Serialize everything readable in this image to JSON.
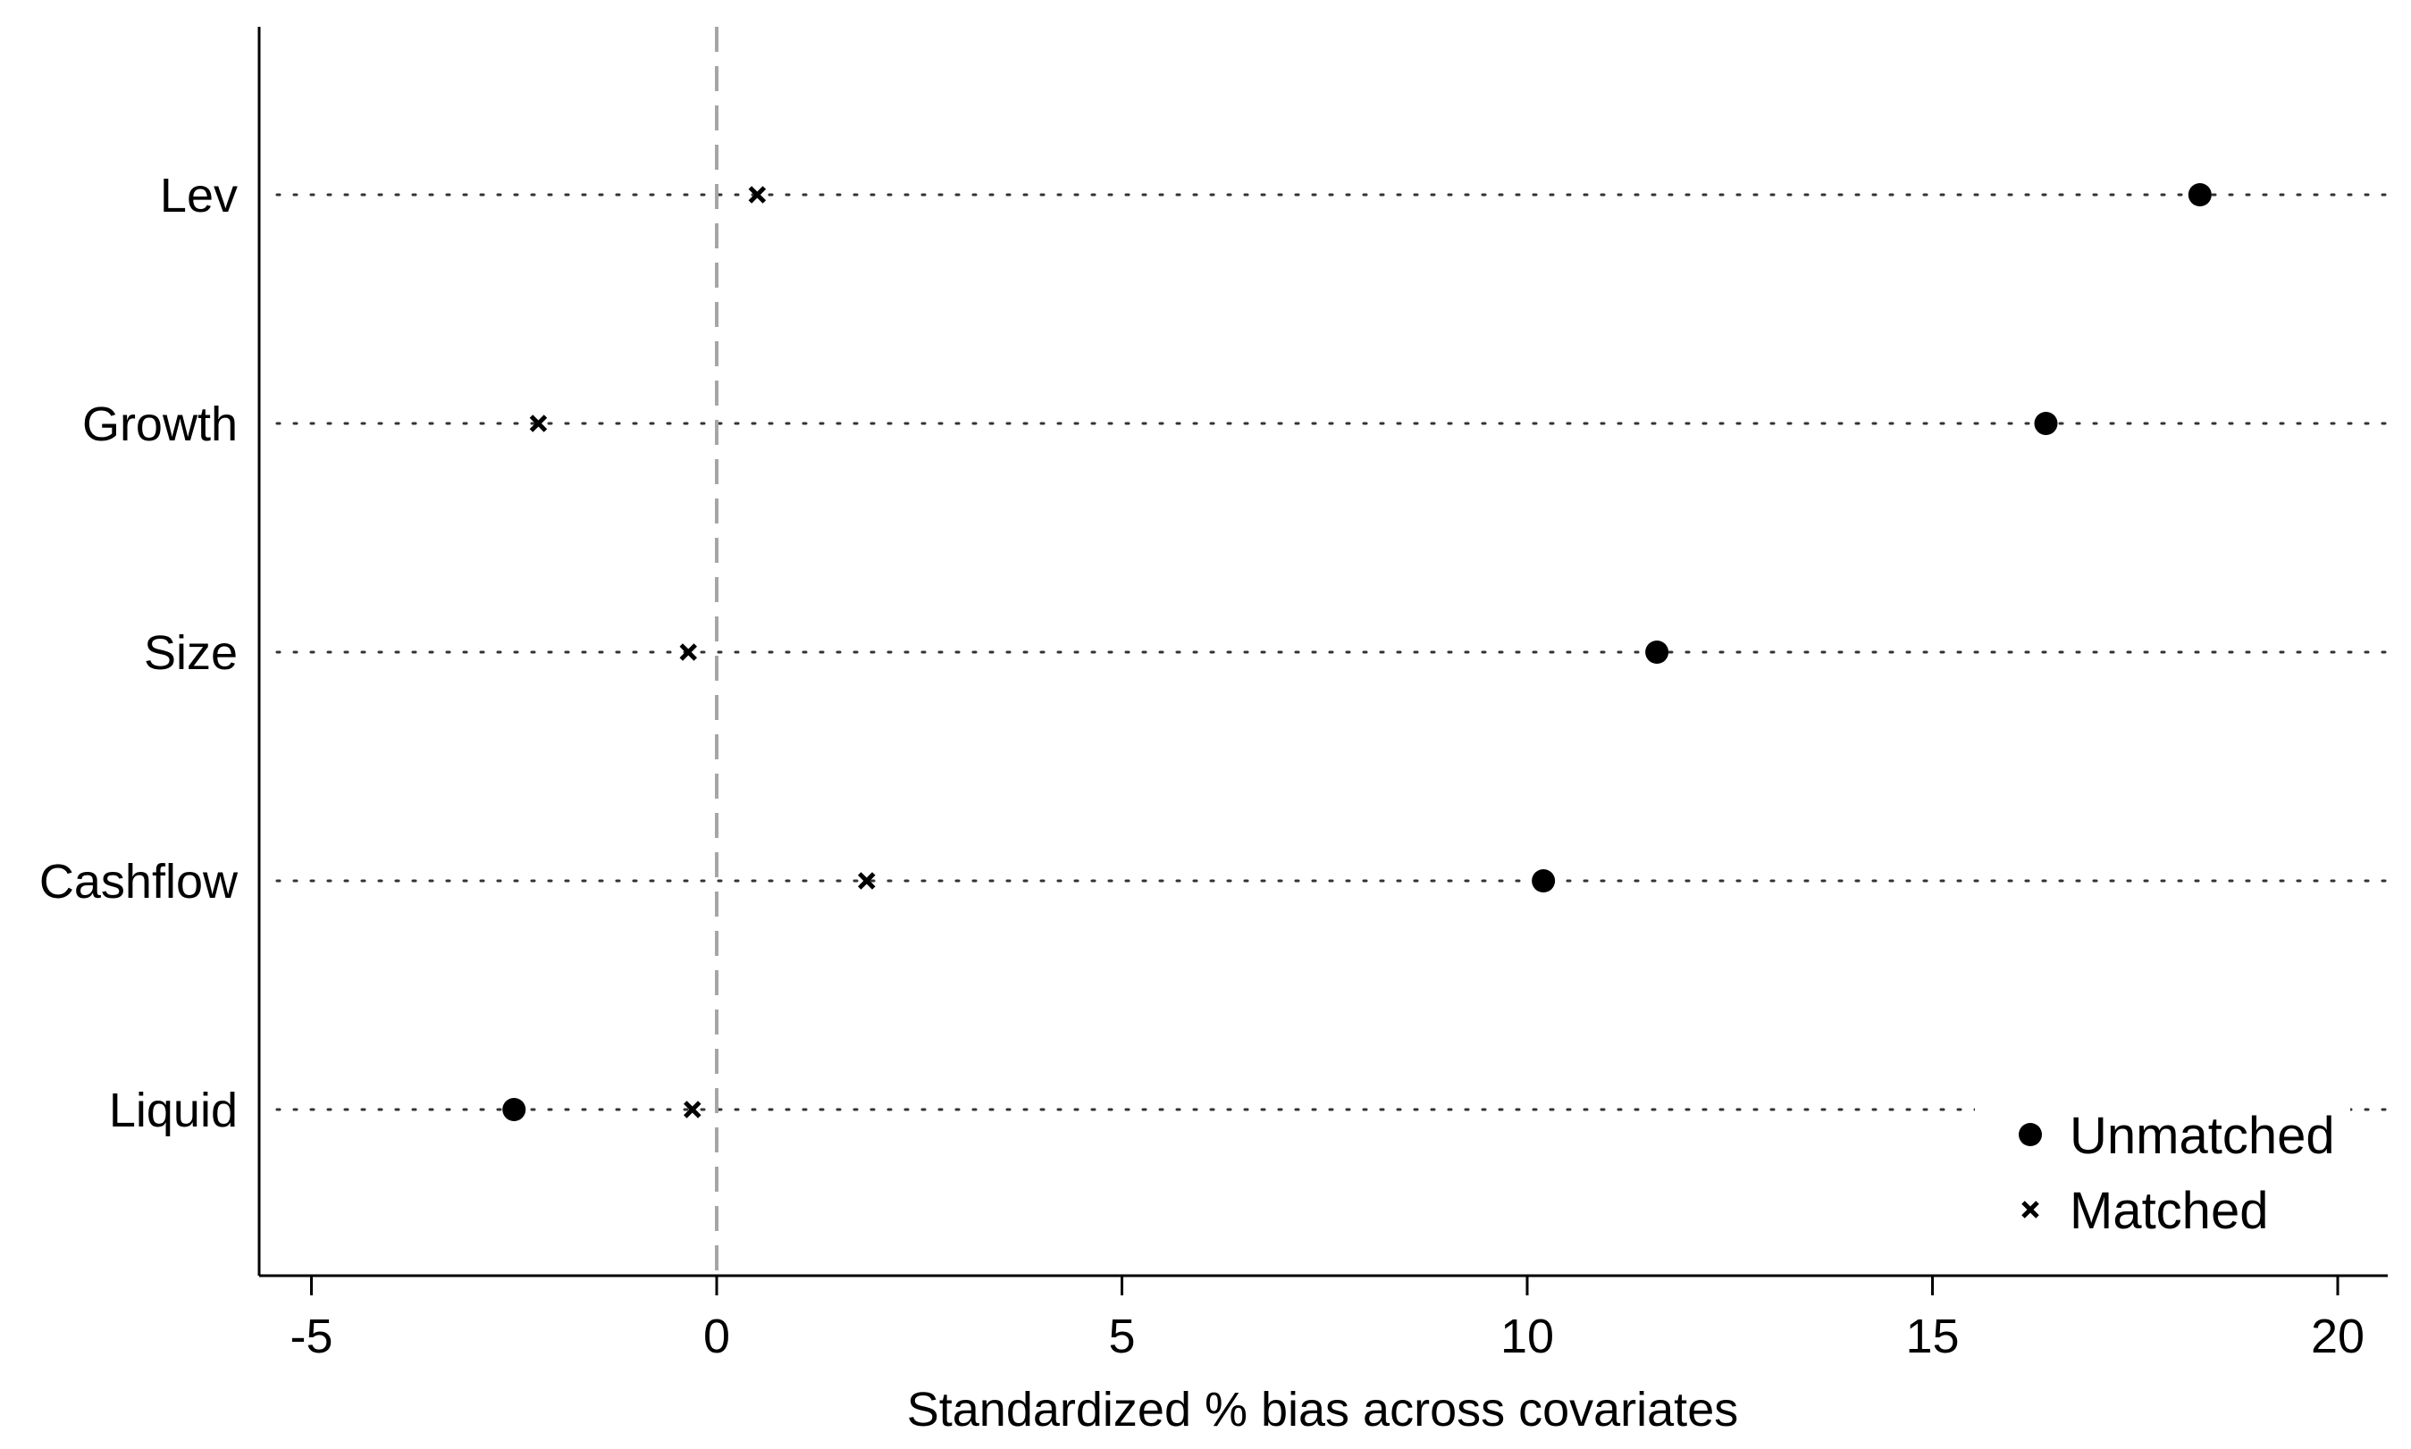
{
  "chart_data": {
    "type": "scatter",
    "xlabel": "Standardized % bias across covariates",
    "ylabel": "",
    "xlim": [
      -6.3,
      20.2
    ],
    "xticks": [
      -5,
      0,
      5,
      10,
      15,
      20
    ],
    "xtick_labels": [
      "-5",
      "0",
      "5",
      "10",
      "15",
      "20"
    ],
    "categories": [
      "Lev",
      "Growth",
      "Size",
      "Cashflow",
      "Liquid"
    ],
    "reference_line": {
      "x": 0,
      "style": "dashed",
      "color": "#a6a6a6"
    },
    "grid": "dotted horizontal lines at each category",
    "legend_position": "bottom-right",
    "series": [
      {
        "name": "Unmatched",
        "marker": "circle",
        "color": "#000000",
        "values": [
          18.3,
          16.4,
          11.6,
          10.2,
          -2.5
        ]
      },
      {
        "name": "Matched",
        "marker": "x",
        "color": "#000000",
        "values": [
          0.5,
          -2.2,
          -0.35,
          1.85,
          -0.3
        ]
      }
    ]
  }
}
